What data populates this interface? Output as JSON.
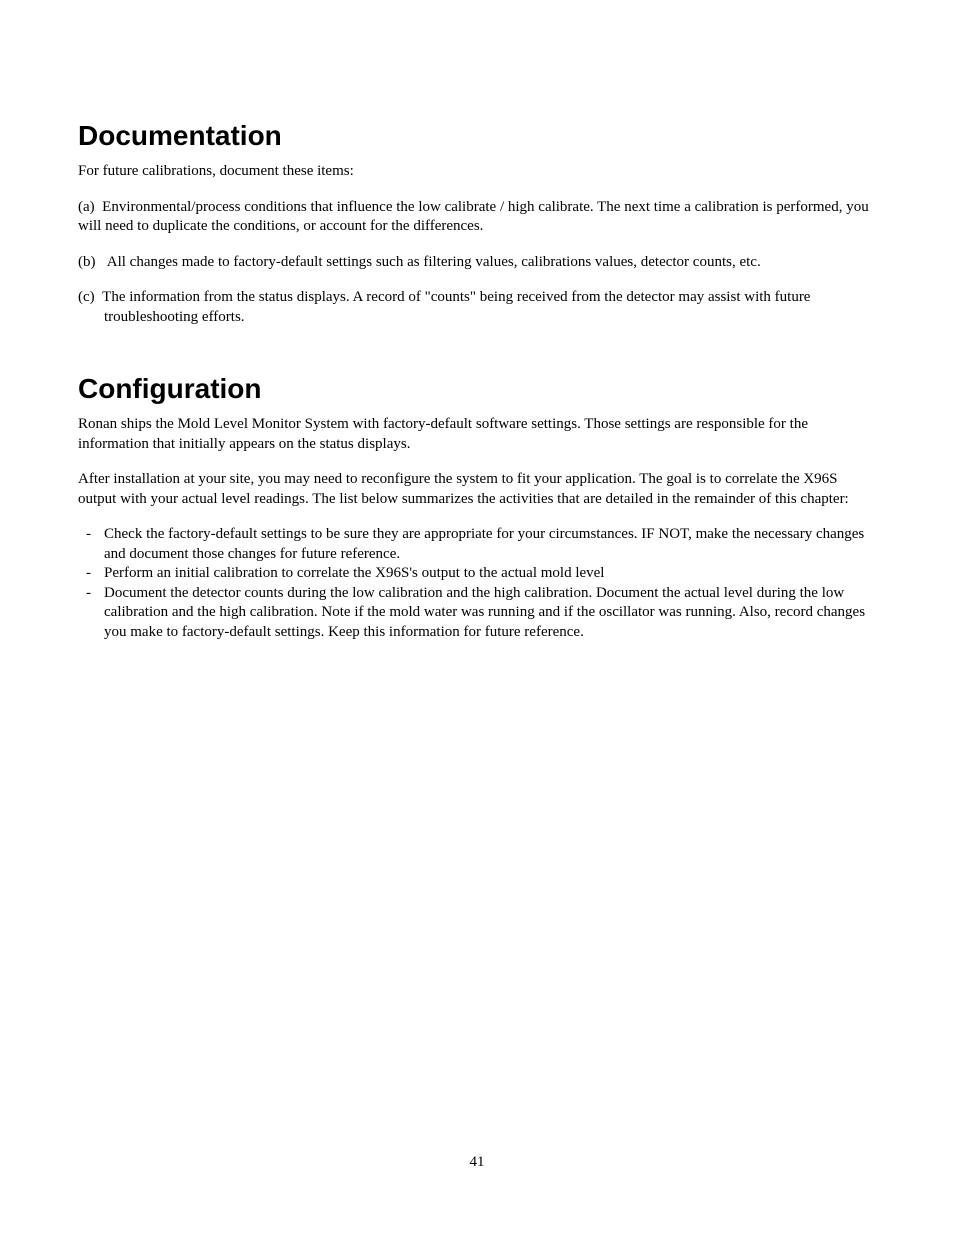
{
  "page": {
    "number": "41",
    "background_color": "#ffffff",
    "text_color": "#000000"
  },
  "documentation": {
    "heading": "Documentation",
    "intro": "For future calibrations, document these items:",
    "items": {
      "a_label": "(a)",
      "a_text": "Environmental/process conditions  that influence the low calibrate / high calibrate. The next time a calibration is performed, you will need to duplicate the conditions, or account for the differences.",
      "b_label": "(b)",
      "b_text": "All changes made to factory-default settings such as filtering values, calibrations values, detector counts, etc.",
      "c_label": "(c)",
      "c_text": "The information from the status displays.  A record of \"counts\" being received from the detector may assist with future troubleshooting efforts."
    }
  },
  "configuration": {
    "heading": "Configuration",
    "para1": "Ronan ships the Mold Level Monitor System with factory-default software settings.  Those settings are responsible for the information that initially appears on the status displays.",
    "para2": "After installation at your site, you may need to reconfigure the system to fit your application.   The goal is to correlate the X96S output with your actual level readings.   The list below summarizes the activities that are detailed in the remainder of this chapter:",
    "bullets": {
      "b1": "Check the factory-default settings to be sure they are appropriate for your circumstances.  IF NOT, make the necessary changes and document those changes for future reference.",
      "b2": "Perform an initial calibration to correlate the X96S's output to the actual mold level",
      "b3": "Document the detector counts during the low calibration and the high calibration.  Document the actual level during the low calibration and the high calibration.  Note if the mold water was running and if the oscillator was running. Also, record changes you make to factory-default settings.  Keep this information for future reference."
    }
  },
  "typography": {
    "heading_font": "Arial",
    "heading_size_pt": 21,
    "heading_weight": "bold",
    "body_font": "Times New Roman",
    "body_size_pt": 11
  }
}
